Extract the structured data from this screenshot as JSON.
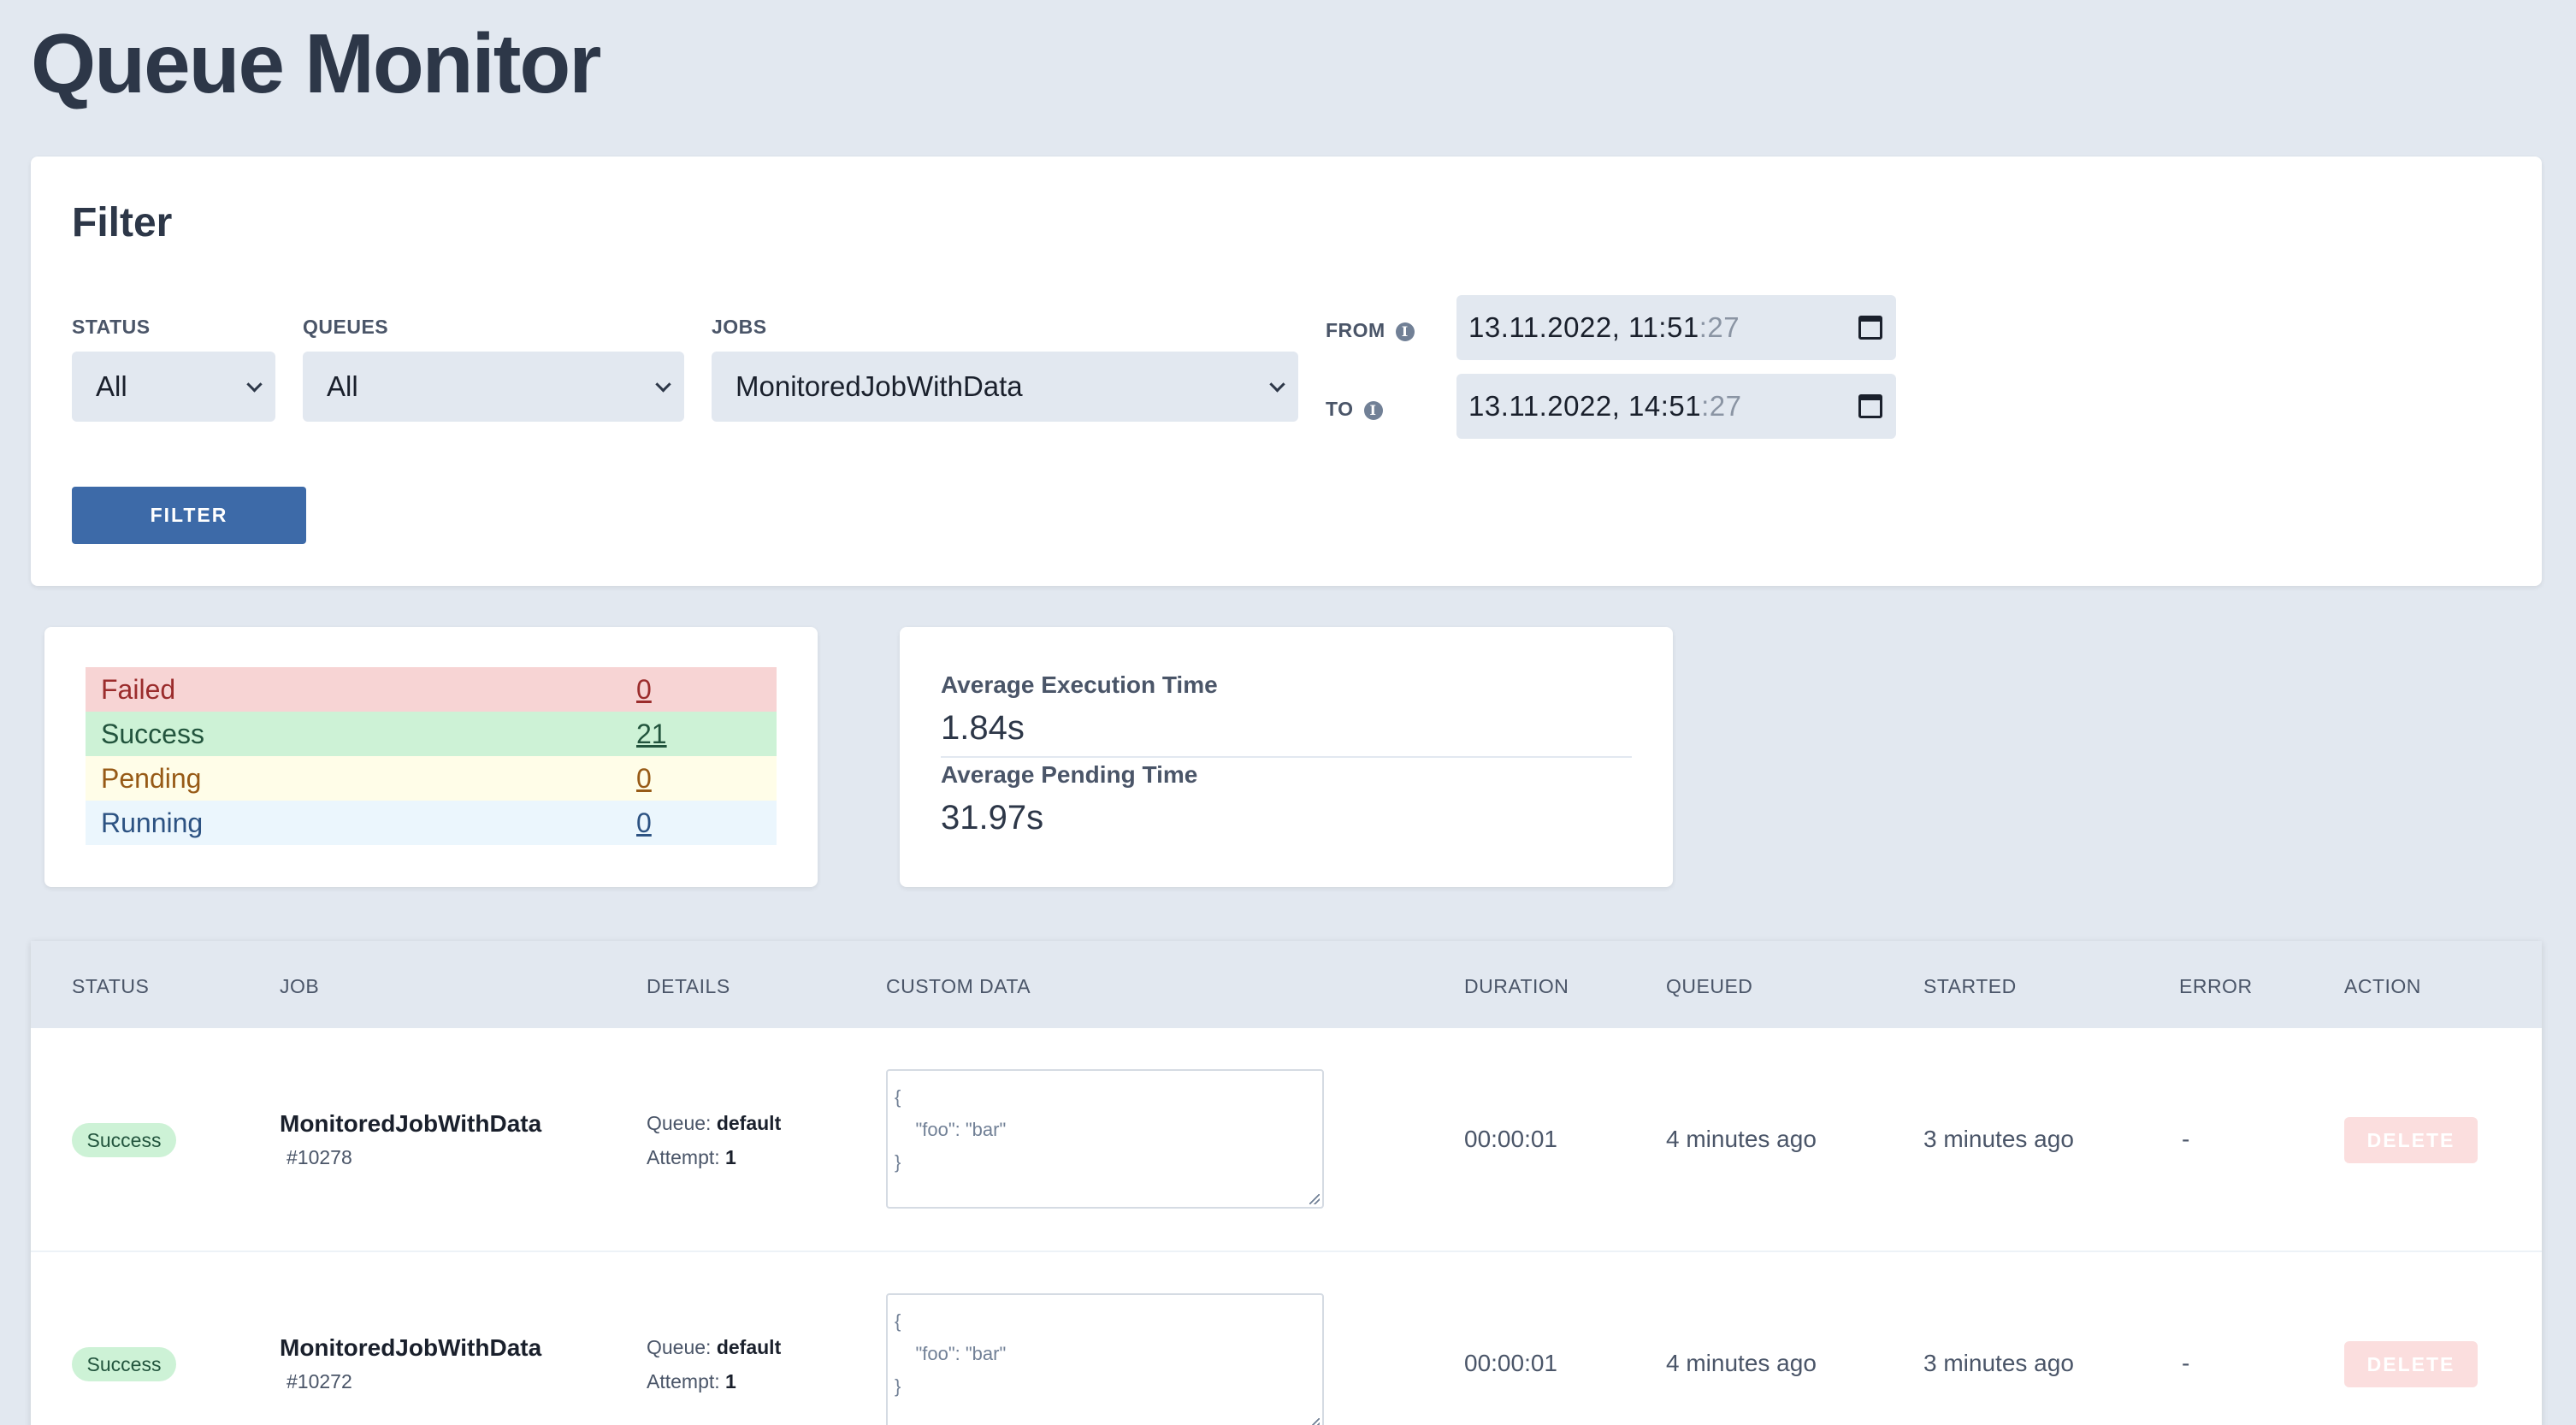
{
  "page": {
    "title": "Queue Monitor"
  },
  "filter": {
    "title": "Filter",
    "status": {
      "label": "STATUS",
      "value": "All"
    },
    "queues": {
      "label": "QUEUES",
      "value": "All"
    },
    "jobs": {
      "label": "JOBS",
      "value": "MonitoredJobWithData"
    },
    "from": {
      "label": "FROM",
      "value_main": "13.11.2022, 11:51",
      "value_sec": ":27"
    },
    "to": {
      "label": "TO",
      "value_main": "13.11.2022, 14:51",
      "value_sec": ":27"
    },
    "button_label": "FILTER"
  },
  "stats": {
    "failed": {
      "label": "Failed",
      "value": "0"
    },
    "success": {
      "label": "Success",
      "value": "21"
    },
    "pending": {
      "label": "Pending",
      "value": "0"
    },
    "running": {
      "label": "Running",
      "value": "0"
    }
  },
  "averages": {
    "execution": {
      "label": "Average Execution Time",
      "value": "1.84s"
    },
    "pending": {
      "label": "Average Pending Time",
      "value": "31.97s"
    }
  },
  "table": {
    "headers": {
      "status": "STATUS",
      "job": "JOB",
      "details": "DETAILS",
      "custom_data": "CUSTOM DATA",
      "duration": "DURATION",
      "queued": "QUEUED",
      "started": "STARTED",
      "error": "ERROR",
      "action": "ACTION"
    },
    "rows": [
      {
        "status": "Success",
        "job": "MonitoredJobWithData",
        "id": "#10278",
        "queue_label": "Queue:",
        "queue": "default",
        "attempt_label": "Attempt:",
        "attempt": "1",
        "custom_data": "{\n    \"foo\": \"bar\"\n}",
        "duration": "00:00:01",
        "queued": "4 minutes ago",
        "started": "3 minutes ago",
        "error": "-",
        "action": "DELETE"
      },
      {
        "status": "Success",
        "job": "MonitoredJobWithData",
        "id": "#10272",
        "queue_label": "Queue:",
        "queue": "default",
        "attempt_label": "Attempt:",
        "attempt": "1",
        "custom_data": "{\n    \"foo\": \"bar\"\n}",
        "duration": "00:00:01",
        "queued": "4 minutes ago",
        "started": "3 minutes ago",
        "error": "-",
        "action": "DELETE"
      }
    ]
  },
  "icons": {
    "info": "info-circle-icon",
    "calendar": "calendar-icon",
    "chevron": "chevron-down-icon"
  }
}
